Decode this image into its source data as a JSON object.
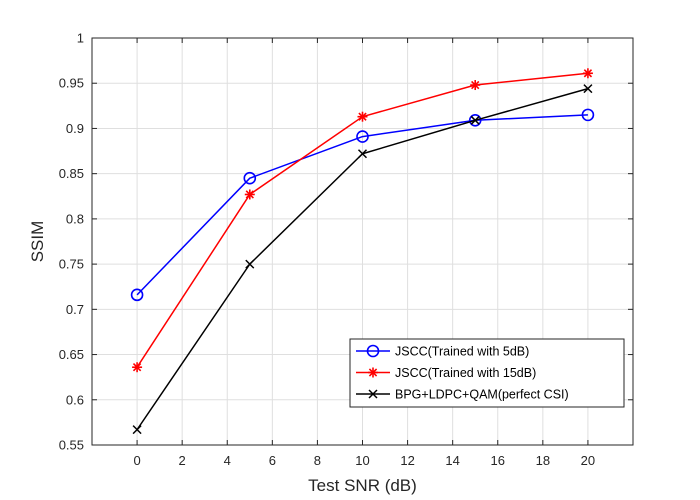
{
  "chart_data": {
    "type": "line",
    "title": "",
    "xlabel": "Test SNR (dB)",
    "ylabel": "SSIM",
    "xlim": [
      -2,
      22
    ],
    "ylim": [
      0.55,
      1.0
    ],
    "xticks": [
      0,
      2,
      4,
      6,
      8,
      10,
      12,
      14,
      16,
      18,
      20
    ],
    "yticks": [
      0.55,
      0.6,
      0.65,
      0.7,
      0.75,
      0.8,
      0.85,
      0.9,
      0.95,
      1
    ],
    "ytick_labels": [
      "0.55",
      "0.6",
      "0.65",
      "0.7",
      "0.75",
      "0.8",
      "0.85",
      "0.9",
      "0.95",
      "1"
    ],
    "grid": true,
    "legend_position": "bottom-right",
    "series": [
      {
        "name": "JSCC(Trained with 5dB)",
        "color": "#0000ff",
        "marker": "circle",
        "x": [
          0,
          5,
          10,
          15,
          20
        ],
        "values": [
          0.716,
          0.845,
          0.891,
          0.909,
          0.915
        ]
      },
      {
        "name": "JSCC(Trained with 15dB)",
        "color": "#ff0000",
        "marker": "asterisk",
        "x": [
          0,
          5,
          10,
          15,
          20
        ],
        "values": [
          0.636,
          0.827,
          0.913,
          0.948,
          0.961
        ]
      },
      {
        "name": "BPG+LDPC+QAM(perfect CSI)",
        "color": "#000000",
        "marker": "x",
        "x": [
          0,
          5,
          10,
          15,
          20
        ],
        "values": [
          0.567,
          0.75,
          0.872,
          0.909,
          0.944
        ]
      }
    ]
  }
}
